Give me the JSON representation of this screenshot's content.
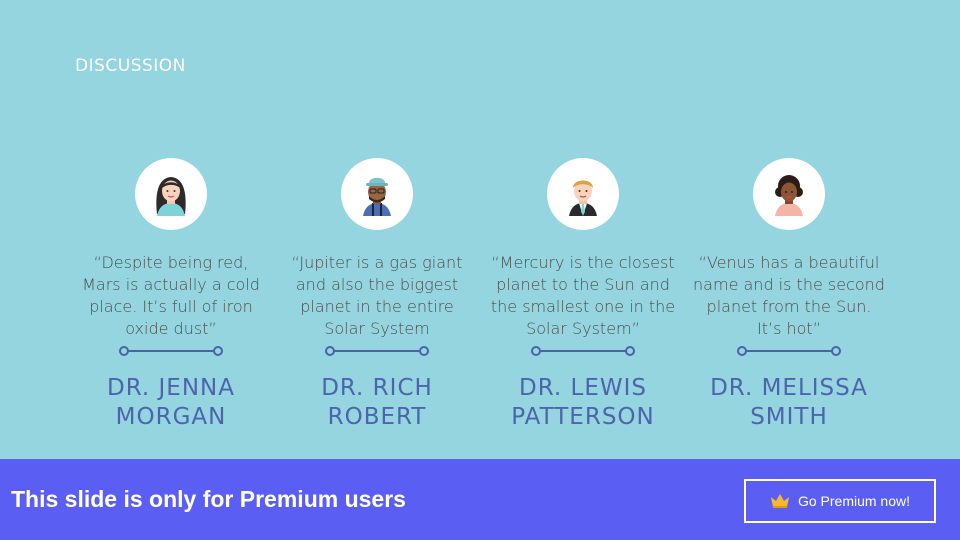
{
  "slide": {
    "title": "DISCUSSION"
  },
  "people": [
    {
      "quote": "“Despite being red, Mars is actually a cold place. It’s full of iron oxide dust”",
      "name_line1": "DR. JENNA",
      "name_line2": "MORGAN",
      "avatar_icon": "woman-avatar-icon"
    },
    {
      "quote": "“Jupiter is a gas giant and also the biggest planet in the entire Solar System",
      "name_line1": "DR. RICH",
      "name_line2": "ROBERT",
      "avatar_icon": "man-hat-avatar-icon"
    },
    {
      "quote": "“Mercury is the closest planet to the Sun and the smallest one in the Solar System”",
      "name_line1": "DR. LEWIS",
      "name_line2": "PATTERSON",
      "avatar_icon": "man-tie-avatar-icon"
    },
    {
      "quote": "“Venus has a beautiful name and is the second planet from the Sun. It’s hot”",
      "name_line1": "DR. MELISSA",
      "name_line2": "SMITH",
      "avatar_icon": "woman-curly-avatar-icon"
    }
  ],
  "banner": {
    "text": "This slide is only for Premium users",
    "button_label": "Go Premium now!",
    "button_icon": "crown-icon"
  },
  "colors": {
    "background": "#95d5df",
    "accent": "#4d64ad",
    "banner": "#5b5ef2"
  }
}
